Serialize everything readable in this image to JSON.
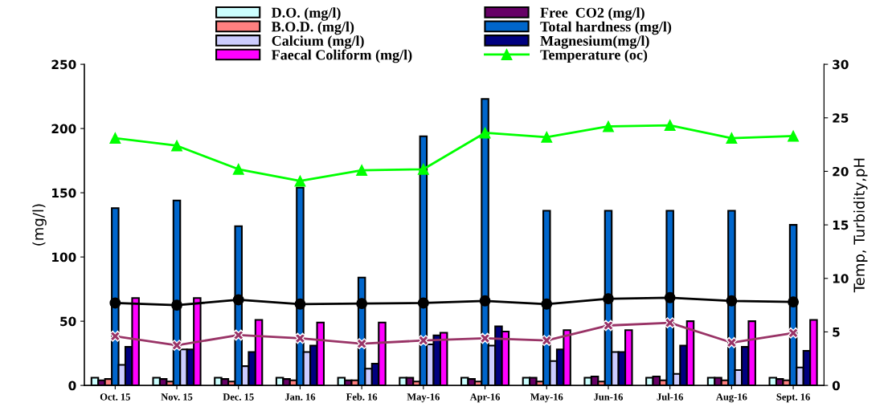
{
  "chart_data": {
    "type": "bar",
    "ylabel": "(mg/l)",
    "y2label": "Temp, Turbidity,pH",
    "categories": [
      "Oct. 15",
      "Nov. 15",
      "Dec. 15",
      "Jan. 16",
      "Feb. 16",
      "May-16",
      "Apr-16",
      "May-16",
      "Jun-16",
      "Jul-16",
      "Aug-16",
      "Sept. 16"
    ],
    "ylim": [
      0,
      250
    ],
    "yticks": [
      0,
      50,
      100,
      150,
      200,
      250
    ],
    "y2lim": [
      0,
      30
    ],
    "y2ticks": [
      0,
      5,
      10,
      15,
      20,
      25,
      30
    ],
    "grid": false,
    "legend": "top",
    "series": [
      {
        "name": "D.O. (mg/l)",
        "color": "#ccffff",
        "values": [
          6,
          6,
          6,
          6,
          6,
          6,
          6,
          6,
          6,
          6,
          6,
          6
        ]
      },
      {
        "name": "Free  CO2 (mg/l)",
        "color": "#660066",
        "values": [
          4,
          5,
          5,
          5,
          4,
          6,
          5,
          6,
          7,
          7,
          6,
          5
        ]
      },
      {
        "name": "B.O.D. (mg/l)",
        "color": "#ff8080",
        "values": [
          5,
          3,
          3,
          4,
          4,
          3,
          3,
          3,
          3,
          4,
          4,
          4
        ]
      },
      {
        "name": "Total hardness (mg/l)",
        "color": "#0066cc",
        "values": [
          138,
          144,
          124,
          154,
          84,
          194,
          223,
          136,
          136,
          136,
          136,
          125
        ]
      },
      {
        "name": "Calcium (mg/l)",
        "color": "#ccccff",
        "values": [
          16,
          28,
          15,
          26,
          13,
          32,
          31,
          19,
          26,
          9,
          12,
          14
        ]
      },
      {
        "name": "Magnesium(mg/l)",
        "color": "#000080",
        "values": [
          30,
          28,
          26,
          31,
          17,
          39,
          46,
          28,
          26,
          31,
          30,
          27
        ]
      },
      {
        "name": "Faecal Coliform (mg/l)",
        "color": "#ff00ff",
        "values": [
          68,
          68,
          51,
          49,
          49,
          41,
          42,
          43,
          43,
          50,
          50,
          51
        ]
      },
      {
        "name": "Temperature (oc)",
        "type": "line",
        "axis": "y2",
        "marker": "triangle",
        "color": "#00ff00",
        "values": [
          23.1,
          22.4,
          20.2,
          19.1,
          20.1,
          20.2,
          23.6,
          23.2,
          24.2,
          24.3,
          23.1,
          23.3
        ]
      },
      {
        "type": "line",
        "axis": "y2",
        "marker": "circle",
        "color": "#000000",
        "values": [
          7.7,
          7.5,
          8.0,
          7.6,
          7.65,
          7.7,
          7.9,
          7.6,
          8.1,
          8.2,
          7.9,
          7.8
        ]
      },
      {
        "type": "line",
        "axis": "y2",
        "marker": "cross",
        "color": "#993366",
        "values": [
          4.6,
          3.75,
          4.7,
          4.4,
          3.9,
          4.2,
          4.4,
          4.2,
          5.6,
          5.85,
          4.0,
          4.9
        ]
      }
    ]
  }
}
